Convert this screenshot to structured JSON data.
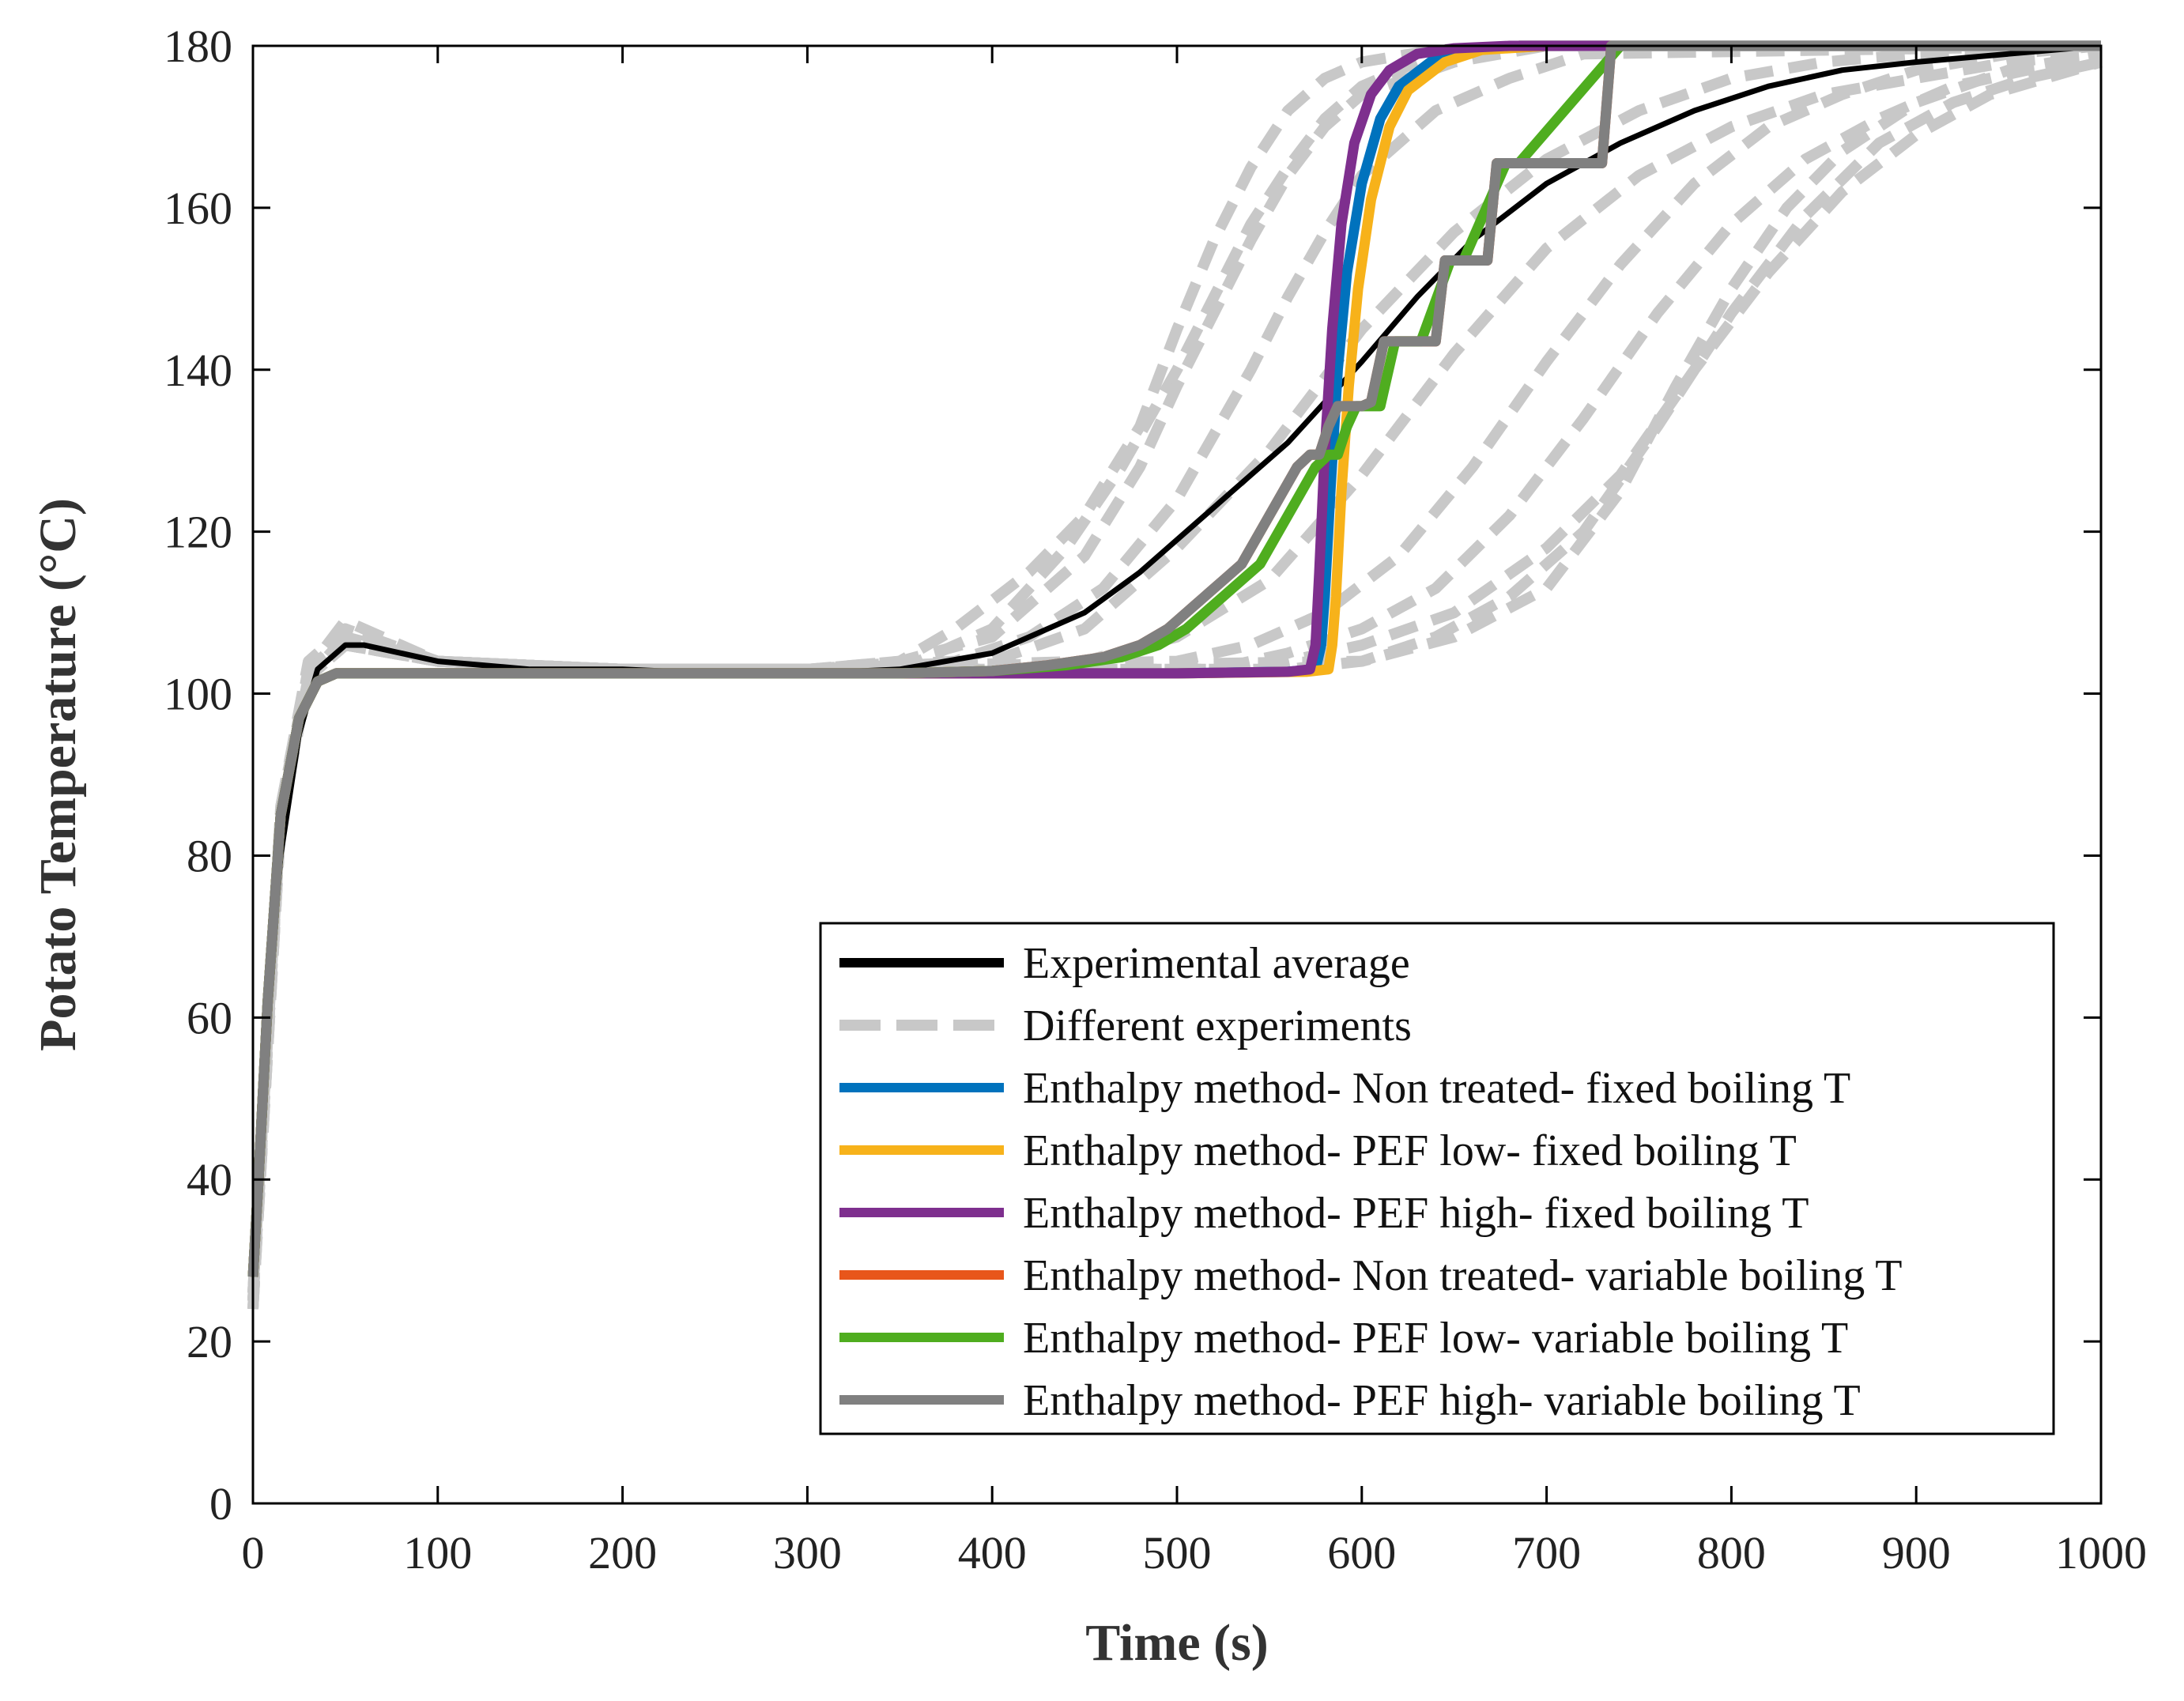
{
  "chart_data": {
    "type": "line",
    "title": "",
    "xlabel": "Time (s)",
    "ylabel": "Potato Temperature (°C)",
    "xlim": [
      0,
      1000
    ],
    "ylim": [
      0,
      180
    ],
    "xticks": [
      0,
      100,
      200,
      300,
      400,
      500,
      600,
      700,
      800,
      900,
      1000
    ],
    "yticks": [
      0,
      20,
      40,
      60,
      80,
      100,
      120,
      140,
      160,
      180
    ],
    "grid": false,
    "legend_position": "bottom-right",
    "series": [
      {
        "name": "Experimental average",
        "color": "#000000",
        "style": "solid",
        "x": [
          0,
          3,
          8,
          15,
          25,
          35,
          50,
          60,
          80,
          100,
          150,
          200,
          250,
          300,
          350,
          400,
          420,
          450,
          480,
          500,
          530,
          560,
          580,
          600,
          630,
          660,
          700,
          740,
          780,
          820,
          860,
          900,
          950,
          1000
        ],
        "y": [
          28,
          40,
          60,
          80,
          95,
          103,
          106,
          106,
          105,
          104,
          103,
          103,
          102.5,
          102.5,
          103,
          105,
          107,
          110,
          115,
          119,
          125,
          131,
          136,
          141,
          149,
          156,
          163,
          168,
          172,
          175,
          177,
          178,
          179,
          180
        ]
      },
      {
        "name": "Different experiments",
        "color": "#c8c8c8",
        "style": "dashed",
        "runs": [
          {
            "x": [
              0,
              5,
              15,
              30,
              50,
              100,
              200,
              300,
              350,
              380,
              420,
              450,
              480,
              500,
              520,
              540,
              560,
              580,
              600,
              640,
              700,
              1000
            ],
            "y": [
              25,
              45,
              85,
              103,
              109,
              104,
              103,
              103,
              104,
              108,
              115,
              122,
              133,
              145,
              156,
              165,
              172,
              176,
              178,
              179.5,
              180,
              180
            ]
          },
          {
            "x": [
              0,
              5,
              15,
              30,
              50,
              100,
              200,
              300,
              360,
              400,
              440,
              470,
              500,
              520,
              540,
              560,
              580,
              600,
              640,
              680,
              1000
            ],
            "y": [
              26,
              46,
              86,
              104,
              108,
              104,
              103,
              103,
              104,
              108,
              118,
              128,
              140,
              149,
              158,
              165,
              171,
              175,
              179,
              180,
              180
            ]
          },
          {
            "x": [
              0,
              5,
              15,
              30,
              50,
              100,
              200,
              300,
              350,
              400,
              450,
              480,
              500,
              520,
              540,
              560,
              580,
              600,
              650,
              700,
              1000
            ],
            "y": [
              24,
              44,
              84,
              102,
              107,
              104,
              103,
              103,
              104,
              107,
              117,
              128,
              138,
              147,
              156,
              164,
              170,
              174,
              178,
              180,
              180
            ]
          },
          {
            "x": [
              0,
              5,
              15,
              30,
              50,
              100,
              200,
              300,
              380,
              420,
              460,
              500,
              540,
              560,
              580,
              600,
              640,
              680,
              720,
              1000
            ],
            "y": [
              25,
              45,
              86,
              103,
              108,
              104,
              103,
              103,
              104,
              107,
              113,
              124,
              140,
              149,
              157,
              164,
              172,
              176,
              179,
              180
            ]
          },
          {
            "x": [
              0,
              5,
              15,
              30,
              50,
              100,
              200,
              300,
              400,
              450,
              500,
              550,
              600,
              650,
              700,
              750,
              800,
              850,
              900,
              1000
            ],
            "y": [
              26,
              46,
              85,
              103,
              107,
              104,
              103,
              103,
              104,
              108,
              118,
              130,
              145,
              157,
              166,
              172,
              176,
              178,
              179,
              180
            ]
          },
          {
            "x": [
              0,
              5,
              15,
              30,
              50,
              100,
              200,
              300,
              450,
              500,
              550,
              600,
              650,
              700,
              750,
              800,
              850,
              900,
              950,
              1000
            ],
            "y": [
              24,
              44,
              84,
              102,
              106,
              104,
              103,
              103,
              104,
              107,
              114,
              127,
              142,
              155,
              164,
              170,
              174,
              176,
              178,
              179
            ]
          },
          {
            "x": [
              0,
              5,
              15,
              30,
              50,
              100,
              200,
              300,
              500,
              540,
              580,
              620,
              660,
              700,
              740,
              780,
              820,
              860,
              900,
              950,
              1000
            ],
            "y": [
              25,
              45,
              85,
              103,
              106,
              104,
              103,
              103,
              104,
              106,
              110,
              117,
              128,
              141,
              153,
              163,
              170,
              174,
              177,
              179,
              180
            ]
          },
          {
            "x": [
              0,
              5,
              15,
              30,
              50,
              100,
              200,
              300,
              520,
              560,
              600,
              640,
              680,
              720,
              760,
              800,
              840,
              880,
              920,
              960,
              1000
            ],
            "y": [
              26,
              46,
              86,
              103,
              106,
              104,
              103,
              103,
              103,
              105,
              108,
              113,
              122,
              134,
              147,
              158,
              166,
              171,
              175,
              177,
              178
            ]
          },
          {
            "x": [
              0,
              5,
              15,
              30,
              50,
              100,
              200,
              300,
              520,
              560,
              600,
              650,
              700,
              740,
              780,
              820,
              860,
              900,
              940,
              1000
            ],
            "y": [
              25,
              45,
              85,
              102,
              106,
              104,
              103,
              103,
              103,
              104,
              106,
              110,
              118,
              127,
              140,
              152,
              162,
              169,
              174,
              178
            ]
          },
          {
            "x": [
              0,
              5,
              15,
              30,
              50,
              100,
              200,
              300,
              560,
              600,
              650,
              700,
              740,
              770,
              800,
              830,
              860,
              900,
              950,
              1000
            ],
            "y": [
              24,
              44,
              84,
              102,
              106,
              104,
              103,
              103,
              103,
              104,
              107,
              113,
              125,
              138,
              150,
              160,
              167,
              173,
              177,
              179
            ]
          },
          {
            "x": [
              0,
              5,
              15,
              30,
              50,
              100,
              200,
              300,
              600,
              640,
              680,
              720,
              760,
              800,
              840,
              880,
              920,
              960,
              1000
            ],
            "y": [
              25,
              45,
              85,
              103,
              106,
              104,
              103,
              103,
              104,
              107,
              112,
              120,
              133,
              147,
              159,
              168,
              173,
              176,
              178
            ]
          }
        ]
      },
      {
        "name": "Enthalpy method- Non treated- fixed boiling T",
        "color": "#0072bd",
        "style": "solid",
        "x": [
          0,
          3,
          8,
          15,
          25,
          35,
          45,
          60,
          100,
          200,
          300,
          400,
          500,
          560,
          575,
          578,
          580,
          583,
          587,
          592,
          600,
          610,
          620,
          640,
          660,
          700,
          750,
          800,
          1000
        ],
        "y": [
          28,
          40,
          62,
          85,
          97,
          101.5,
          102.5,
          102.5,
          102.5,
          102.5,
          102.5,
          102.5,
          102.5,
          102.7,
          103,
          106,
          112,
          125,
          140,
          152,
          163,
          171,
          175,
          178.5,
          179.5,
          180,
          180,
          180,
          180
        ]
      },
      {
        "name": "Enthalpy method- PEF low- fixed boiling T",
        "color": "#f7b21a",
        "style": "solid",
        "x": [
          0,
          3,
          8,
          15,
          25,
          35,
          45,
          60,
          100,
          200,
          300,
          400,
          500,
          570,
          582,
          584,
          586,
          589,
          593,
          598,
          605,
          615,
          625,
          645,
          665,
          700,
          750,
          800,
          1000
        ],
        "y": [
          28,
          40,
          62,
          85,
          97,
          101.5,
          102.5,
          102.5,
          102.5,
          102.5,
          102.5,
          102.5,
          102.5,
          102.7,
          103,
          106,
          112,
          125,
          138,
          150,
          161,
          170,
          174.5,
          178,
          179.5,
          180,
          180,
          180,
          180
        ]
      },
      {
        "name": "Enthalpy method- PEF high- fixed boiling T",
        "color": "#7e2f8e",
        "style": "solid",
        "x": [
          0,
          3,
          8,
          15,
          25,
          35,
          45,
          60,
          100,
          200,
          300,
          400,
          500,
          560,
          572,
          575,
          577,
          580,
          584,
          589,
          596,
          605,
          615,
          630,
          650,
          680,
          720,
          800,
          1000
        ],
        "y": [
          28,
          40,
          62,
          85,
          97,
          101.5,
          102.5,
          102.5,
          102.5,
          102.5,
          102.5,
          102.5,
          102.5,
          102.7,
          103,
          106,
          115,
          130,
          145,
          158,
          168,
          174,
          177,
          179,
          179.7,
          180,
          180,
          180,
          180
        ]
      },
      {
        "name": "Enthalpy method- Non treated- variable boiling T",
        "color": "#e8561b",
        "style": "solid",
        "x": [
          0,
          3,
          8,
          15,
          25,
          35,
          45,
          60,
          100,
          200,
          300,
          350,
          400,
          430,
          460,
          480,
          495,
          505,
          515,
          525,
          535,
          545,
          555,
          565,
          572,
          577,
          582,
          587,
          595,
          600,
          605,
          612,
          615,
          625,
          630,
          640,
          645,
          668,
          673,
          730,
          735,
          1000
        ],
        "y": [
          28,
          40,
          62,
          85,
          97,
          101.5,
          102.5,
          102.5,
          102.5,
          102.5,
          102.5,
          102.5,
          102.8,
          103.5,
          104.5,
          106,
          108,
          110,
          112,
          114,
          116,
          120,
          124,
          128,
          129.5,
          129.5,
          133,
          135.5,
          135.5,
          135.5,
          136,
          143.5,
          143.5,
          143.5,
          143.5,
          143.5,
          153.5,
          153.5,
          165.5,
          165.5,
          180,
          180
        ]
      },
      {
        "name": "Enthalpy method- PEF low- variable boiling T",
        "color": "#4fad1f",
        "style": "solid",
        "x": [
          0,
          3,
          8,
          15,
          25,
          35,
          45,
          60,
          100,
          200,
          300,
          350,
          400,
          440,
          470,
          490,
          505,
          515,
          525,
          535,
          545,
          555,
          565,
          575,
          582,
          587,
          592,
          597,
          605,
          610,
          618,
          625,
          632,
          648,
          655,
          678,
          685,
          740,
          747,
          1000
        ],
        "y": [
          28,
          40,
          62,
          85,
          97,
          101.5,
          102.5,
          102.5,
          102.5,
          102.5,
          102.5,
          102.5,
          102.8,
          103.5,
          104.5,
          106,
          108,
          110,
          112,
          114,
          116,
          120,
          124,
          128,
          129.5,
          129.5,
          133,
          135.5,
          135.5,
          135.5,
          143.5,
          143.5,
          143.5,
          153.5,
          153.5,
          165.5,
          165.5,
          180,
          180,
          180
        ]
      },
      {
        "name": "Enthalpy method- PEF high- variable boiling T",
        "color": "#808080",
        "style": "solid",
        "x": [
          0,
          3,
          8,
          15,
          25,
          35,
          45,
          60,
          100,
          200,
          300,
          350,
          400,
          430,
          460,
          480,
          495,
          505,
          515,
          525,
          535,
          545,
          555,
          565,
          572,
          577,
          582,
          587,
          595,
          600,
          605,
          612,
          620,
          640,
          645,
          668,
          673,
          730,
          735,
          1000
        ],
        "y": [
          28,
          40,
          62,
          85,
          97,
          101.5,
          102.5,
          102.5,
          102.5,
          102.5,
          102.5,
          102.5,
          102.8,
          103.5,
          104.5,
          106,
          108,
          110,
          112,
          114,
          116,
          120,
          124,
          128,
          129.5,
          129.5,
          133,
          135.5,
          135.5,
          135.5,
          136,
          143.5,
          143.5,
          143.5,
          153.5,
          153.5,
          165.5,
          165.5,
          180,
          180
        ]
      }
    ]
  }
}
